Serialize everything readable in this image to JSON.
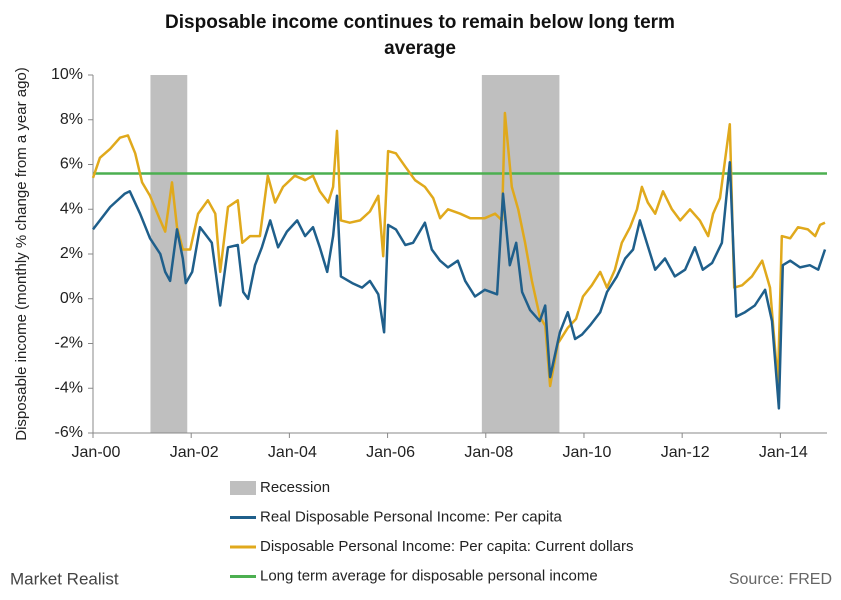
{
  "chart_data": {
    "type": "line",
    "title": "Disposable income continues to remain below long term average",
    "y_label": "Disposable income (monthly % change from a year ago)",
    "source": "Source: FRED",
    "logo": "Market Realist",
    "xlim": [
      2000,
      2014.95
    ],
    "xticks": [
      {
        "value": 2000,
        "label": "Jan-00"
      },
      {
        "value": 2002,
        "label": "Jan-02"
      },
      {
        "value": 2004,
        "label": "Jan-04"
      },
      {
        "value": 2006,
        "label": "Jan-06"
      },
      {
        "value": 2008,
        "label": "Jan-08"
      },
      {
        "value": 2010,
        "label": "Jan-10"
      },
      {
        "value": 2012,
        "label": "Jan-12"
      },
      {
        "value": 2014,
        "label": "Jan-14"
      }
    ],
    "ylim": [
      -6,
      10
    ],
    "yticks": [
      {
        "value": -6,
        "label": "-6%"
      },
      {
        "value": -4,
        "label": "-4%"
      },
      {
        "value": -2,
        "label": "-2%"
      },
      {
        "value": 0,
        "label": "0%"
      },
      {
        "value": 2,
        "label": "2%"
      },
      {
        "value": 4,
        "label": "4%"
      },
      {
        "value": 6,
        "label": "6%"
      },
      {
        "value": 8,
        "label": "8%"
      },
      {
        "value": 10,
        "label": "10%"
      }
    ],
    "recession_name": "Recession",
    "recession_color": "#bfbfbf",
    "recessions": [
      [
        2001.17,
        2001.92
      ],
      [
        2007.92,
        2009.5
      ]
    ],
    "series": [
      {
        "name": "Real Disposable Personal Income: Per capita",
        "color": "#1f5f8b",
        "x": [
          2000.0,
          2000.35,
          2000.65,
          2000.75,
          2000.96,
          2001.16,
          2001.37,
          2001.47,
          2001.57,
          2001.71,
          2001.83,
          2001.89,
          2002.02,
          2002.18,
          2002.42,
          2002.59,
          2002.75,
          2002.95,
          2003.06,
          2003.16,
          2003.3,
          2003.44,
          2003.61,
          2003.77,
          2003.95,
          2004.16,
          2004.32,
          2004.48,
          2004.62,
          2004.77,
          2004.89,
          2004.97,
          2005.05,
          2005.28,
          2005.48,
          2005.64,
          2005.81,
          2005.93,
          2006.01,
          2006.17,
          2006.36,
          2006.52,
          2006.76,
          2006.9,
          2007.07,
          2007.23,
          2007.43,
          2007.58,
          2007.78,
          2007.98,
          2008.23,
          2008.35,
          2008.49,
          2008.62,
          2008.74,
          2008.9,
          2009.1,
          2009.21,
          2009.31,
          2009.51,
          2009.67,
          2009.82,
          2009.96,
          2010.12,
          2010.33,
          2010.47,
          2010.67,
          2010.84,
          2011.0,
          2011.14,
          2011.28,
          2011.45,
          2011.65,
          2011.85,
          2012.06,
          2012.26,
          2012.42,
          2012.61,
          2012.81,
          2012.97,
          2013.1,
          2013.28,
          2013.48,
          2013.69,
          2013.83,
          2013.97,
          2014.05,
          2014.2,
          2014.4,
          2014.6,
          2014.77,
          2014.91
        ],
        "values": [
          3.1,
          4.1,
          4.7,
          4.8,
          3.8,
          2.7,
          2.0,
          1.2,
          0.8,
          3.1,
          1.8,
          0.7,
          1.2,
          3.2,
          2.5,
          -0.3,
          2.3,
          2.4,
          0.3,
          0,
          1.5,
          2.3,
          3.5,
          2.3,
          3.0,
          3.5,
          2.8,
          3.2,
          2.3,
          1.2,
          2.8,
          4.6,
          1.0,
          0.7,
          0.5,
          0.8,
          0.2,
          -1.5,
          3.3,
          3.1,
          2.4,
          2.5,
          3.4,
          2.2,
          1.7,
          1.4,
          1.7,
          0.8,
          0.1,
          0.4,
          0.2,
          4.7,
          1.5,
          2.5,
          0.3,
          -0.5,
          -1.0,
          -0.3,
          -3.5,
          -1.5,
          -0.6,
          -1.8,
          -1.6,
          -1.2,
          -0.6,
          0.3,
          1.0,
          1.8,
          2.2,
          3.5,
          2.5,
          1.3,
          1.8,
          1.0,
          1.3,
          2.3,
          1.3,
          1.6,
          2.5,
          6.1,
          -0.8,
          -0.6,
          -0.3,
          0.4,
          -1.0,
          -4.9,
          1.5,
          1.7,
          1.4,
          1.5,
          1.3,
          2.2
        ]
      },
      {
        "name": "Disposable Personal Income: Per capita: Current dollars",
        "color": "#e0a91c",
        "x": [
          2000.0,
          2000.14,
          2000.35,
          2000.55,
          2000.71,
          2000.86,
          2001.0,
          2001.16,
          2001.37,
          2001.47,
          2001.61,
          2001.71,
          2001.83,
          2001.98,
          2002.14,
          2002.34,
          2002.49,
          2002.59,
          2002.75,
          2002.95,
          2003.04,
          2003.2,
          2003.4,
          2003.56,
          2003.71,
          2003.87,
          2004.11,
          2004.32,
          2004.48,
          2004.62,
          2004.79,
          2004.89,
          2004.97,
          2005.05,
          2005.23,
          2005.44,
          2005.64,
          2005.81,
          2005.91,
          2006.01,
          2006.17,
          2006.36,
          2006.56,
          2006.76,
          2006.93,
          2007.07,
          2007.23,
          2007.48,
          2007.68,
          2007.98,
          2008.19,
          2008.33,
          2008.39,
          2008.53,
          2008.66,
          2008.8,
          2008.94,
          2009.1,
          2009.21,
          2009.31,
          2009.47,
          2009.67,
          2009.84,
          2009.98,
          2010.16,
          2010.33,
          2010.47,
          2010.63,
          2010.77,
          2010.94,
          2011.08,
          2011.18,
          2011.3,
          2011.45,
          2011.61,
          2011.79,
          2011.96,
          2012.16,
          2012.36,
          2012.53,
          2012.63,
          2012.77,
          2012.97,
          2013.06,
          2013.22,
          2013.42,
          2013.63,
          2013.79,
          2013.95,
          2014.03,
          2014.2,
          2014.36,
          2014.56,
          2014.71,
          2014.81,
          2014.91
        ],
        "values": [
          5.4,
          6.3,
          6.7,
          7.2,
          7.3,
          6.5,
          5.2,
          4.6,
          3.5,
          3.0,
          5.2,
          3.2,
          2.2,
          2.2,
          3.8,
          4.4,
          3.8,
          1.2,
          4.1,
          4.4,
          2.5,
          2.8,
          2.8,
          5.5,
          4.3,
          5.0,
          5.5,
          5.3,
          5.5,
          4.8,
          4.3,
          5.0,
          7.5,
          3.5,
          3.4,
          3.5,
          3.9,
          4.6,
          1.9,
          6.6,
          6.5,
          5.9,
          5.3,
          5.0,
          4.5,
          3.6,
          4.0,
          3.8,
          3.6,
          3.6,
          3.8,
          3.5,
          8.3,
          5.0,
          4.0,
          2.5,
          0.8,
          -0.8,
          -1.2,
          -3.9,
          -2.0,
          -1.3,
          -0.9,
          0.1,
          0.6,
          1.2,
          0.5,
          1.3,
          2.5,
          3.2,
          4.0,
          5.0,
          4.3,
          3.8,
          4.8,
          4.0,
          3.5,
          4.0,
          3.5,
          2.8,
          3.8,
          4.5,
          7.8,
          0.5,
          0.6,
          1.0,
          1.7,
          0.5,
          -3.8,
          2.8,
          2.7,
          3.2,
          3.1,
          2.8,
          3.3,
          3.4
        ]
      }
    ],
    "average": {
      "name": "Long term average for disposable personal income",
      "color": "#4caf50",
      "value": 5.6
    }
  }
}
